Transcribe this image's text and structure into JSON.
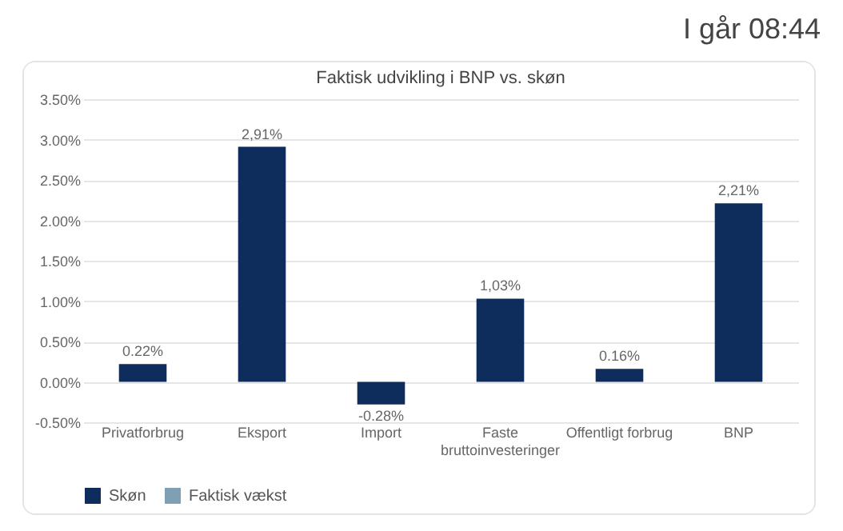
{
  "chart_data": {
    "type": "bar",
    "title": "Faktisk udvikling i BNP vs. skøn",
    "categories": [
      "Privatforbrug",
      "Eksport",
      "Import",
      "Faste bruttoinvesteringer",
      "Offentligt forbrug",
      "BNP"
    ],
    "series": [
      {
        "name": "Skøn",
        "color": "#0f2d5c",
        "values": [
          0.22,
          2.91,
          -0.28,
          1.03,
          0.16,
          2.21
        ],
        "value_labels": [
          "0.22%",
          "2,91%",
          "-0.28%",
          "1,03%",
          "0.16%",
          "2,21%"
        ]
      },
      {
        "name": "Faktisk vækst",
        "color": "#7f9fb5",
        "values": [
          null,
          null,
          null,
          null,
          null,
          null
        ]
      }
    ],
    "ylim": [
      -0.5,
      3.5
    ],
    "yticks": [
      {
        "value": -0.5,
        "label": "-0.50%"
      },
      {
        "value": 0,
        "label": "0.00%"
      },
      {
        "value": 0.5,
        "label": "0.50%"
      },
      {
        "value": 1,
        "label": "1.00%"
      },
      {
        "value": 1.5,
        "label": "1.50%"
      },
      {
        "value": 2,
        "label": "2.00%"
      },
      {
        "value": 2.5,
        "label": "2.50%"
      },
      {
        "value": 3,
        "label": "3.00%"
      },
      {
        "value": 3.5,
        "label": "3.50%"
      }
    ],
    "grid": "y",
    "legend": "bottom",
    "annotations": [
      "I går 08:44"
    ]
  }
}
